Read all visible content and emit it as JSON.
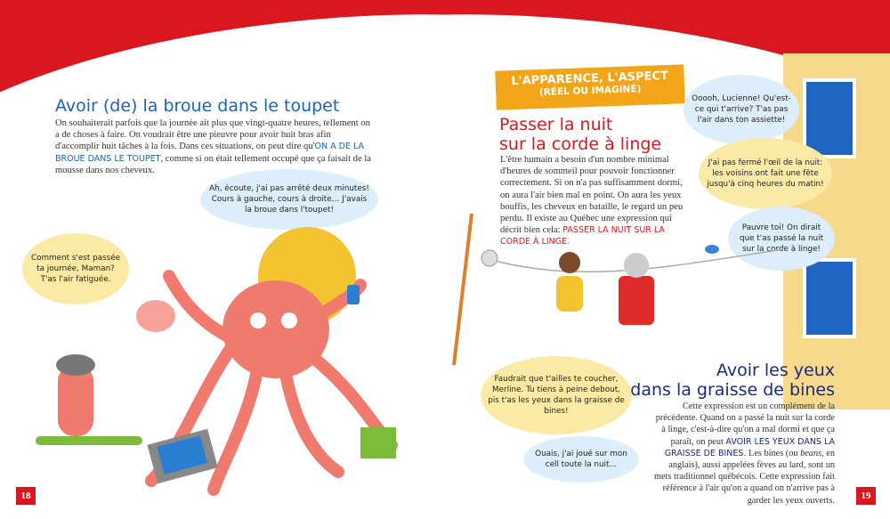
{
  "left_page": {
    "title": "Avoir (de) la broue dans le toupet",
    "paragraph_start": "On souhaiterait parfois que la journée ait plus que vingt-quatre heures, tellement on a de choses à faire. On voudrait être une pieuvre pour avoir huit bras afin d'accomplir huit tâches à la fois. Dans ces situations, on peut dire qu'",
    "expression": "ON A DE LA BROUE DANS LE TOUPET",
    "paragraph_end": ", comme si on était tellement occupé que ça faisait de la mousse dans nos cheveux.",
    "bubble_mom": "Ah, écoute, j'ai pas arrêté deux minutes! Cours à gauche, cours à droite… J'avais la broue dans l'toupet!",
    "bubble_child": "Comment s'est passée ta journée, Maman? T'as l'air fatiguée.",
    "page_number": "18"
  },
  "right_page": {
    "category_banner_line1": "L'APPARENCE, L'ASPECT",
    "category_banner_line2": "(RÉEL OU IMAGINÉ)",
    "section1": {
      "title_line1": "Passer la nuit",
      "title_line2": "sur la corde à linge",
      "paragraph": "L'être humain a besoin d'un nombre minimal d'heures de sommeil pour pouvoir fonctionner correctement. Si on n'a pas suffisamment dormi, on aura l'air bien mal en point. On aura les yeux bouffis, les cheveux en bataille, le regard un peu perdu. Il existe au Québec une expression qui décrit bien cela: ",
      "expression": "PASSER LA NUIT SUR LA CORDE À LINGE."
    },
    "bubbles": {
      "neighbor_1": "Ooooh, Lucienne! Qu'est-ce qui t'arrive? T'as pas l'air dans ton assiette!",
      "lucienne": "J'ai pas fermé l'œil de la nuit: les voisins ont fait une fête jusqu'à cinq heures du matin!",
      "neighbor_2": "Pauvre toi! On dirait que t'as passé la nuit sur la corde à linge!",
      "parent": "Faudrait que t'ailles te coucher, Merline. Tu tiens à peine debout, pis t'as les yeux dans la graisse de bines!",
      "merline": "Ouais, j'ai joué sur mon cell toute la nuit…"
    },
    "section2": {
      "title_line1": "Avoir les yeux",
      "title_line2": "dans la graisse de bines",
      "paragraph_start": "Cette expression est un complément de la précédente. Quand on a passé la nuit sur la corde à linge, c'est-à-dire qu'on a mal dormi et que ça paraît, on peut ",
      "expression": "AVOIR LES YEUX DANS LA GRAISSE DE BINES.",
      "paragraph_mid": " Les bines (ou ",
      "italic_word": "beans",
      "paragraph_end": ", en anglais), aussi appelées fèves au lard, sont un mets traditionnel québécois. Cette expression fait référence à l'air qu'on a quand on n'arrive pas à garder les yeux ouverts."
    },
    "page_number": "19"
  },
  "colors": {
    "red": "#d9171f",
    "blue_title": "#1a63b5",
    "navy_title": "#1d2a7a",
    "orange_banner": "#f2a516",
    "bubble_yellow": "#fbeaa6",
    "bubble_blue": "#dceefa"
  }
}
